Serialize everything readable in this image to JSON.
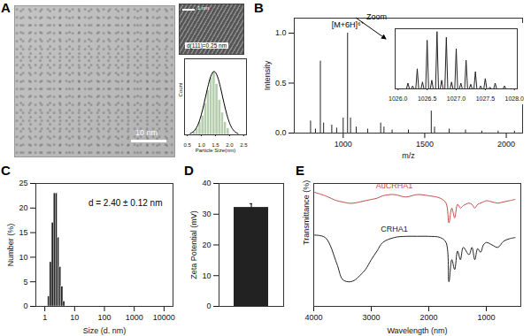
{
  "chart_data": [
    {
      "type": "image",
      "label": "A",
      "scale_bar": "10 nm"
    },
    {
      "type": "image",
      "scale_bar": "1 nm",
      "annotations": [
        "d(111)=0.25 nm"
      ]
    },
    {
      "type": "histogram",
      "bins": [
        0.7,
        0.8,
        0.9,
        1.0,
        1.1,
        1.2,
        1.3,
        1.4,
        1.5,
        1.6,
        1.7,
        1.8,
        1.9,
        2.0
      ],
      "values": [
        1,
        2,
        4,
        6,
        10,
        14,
        18,
        20,
        16,
        11,
        7,
        4,
        2
      ],
      "color": "#b7cdb0",
      "fit": {
        "x": [
          0.6,
          0.7,
          0.8,
          0.9,
          1.0,
          1.1,
          1.2,
          1.3,
          1.4,
          1.5,
          1.6,
          1.7,
          1.8,
          1.9,
          2.0,
          2.1,
          2.2,
          2.3
        ],
        "values": [
          0.4,
          0.9,
          1.9,
          3.7,
          6.5,
          10.1,
          14.1,
          17.6,
          19.7,
          19.7,
          17.6,
          14.1,
          10.1,
          6.5,
          3.7,
          1.9,
          0.9,
          0.4
        ]
      },
      "xlim": [
        0.4,
        2.6
      ],
      "xticks": [
        0.5,
        {
          "value": 1,
          "label": "1.0"
        },
        1.5,
        {
          "value": 2,
          "label": "2.0"
        },
        2.5
      ],
      "ylim": [
        0,
        24
      ],
      "tick_labels": "x",
      "x_label": "Particle Size(nm)",
      "y_label": "Count"
    },
    {
      "type": "spectrum",
      "label": "B",
      "x": [
        800,
        830,
        860,
        880,
        930,
        960,
        1000,
        1027,
        1045,
        1080,
        1150,
        1230,
        1250,
        1300,
        1400,
        1540,
        1560,
        1650,
        1750,
        1850,
        1950,
        2050
      ],
      "values": [
        0.12,
        0.04,
        0.72,
        0.1,
        0.08,
        0.05,
        0.15,
        1.0,
        0.15,
        0.06,
        0.04,
        0.1,
        0.06,
        0.03,
        0.03,
        0.22,
        0.06,
        0.04,
        0.03,
        0.02,
        0.02,
        0.02
      ],
      "color": "#222222",
      "xlim": [
        700,
        2100
      ],
      "xticks": [
        1000,
        1500,
        2000
      ],
      "ylim": [
        0,
        1.15
      ],
      "yticks": [
        {
          "value": 0,
          "label": "0.0"
        },
        {
          "value": 0.5,
          "label": "0.5"
        },
        {
          "value": 1,
          "label": "1.0"
        }
      ],
      "x_label": "m/z",
      "y_label": "Intensity",
      "annotations": [
        "[M+6H]⁶⁺",
        "Zoom"
      ],
      "inset": {
        "type": "spectrum",
        "x": [
          1026.17,
          1026.25,
          1026.33,
          1026.42,
          1026.5,
          1026.58,
          1026.67,
          1026.75,
          1026.83,
          1026.92,
          1027.0,
          1027.08,
          1027.17,
          1027.25,
          1027.33,
          1027.42,
          1027.5,
          1027.58,
          1027.67,
          1027.83
        ],
        "values": [
          0.1,
          0.05,
          0.35,
          0.12,
          0.85,
          0.15,
          1.0,
          0.15,
          0.9,
          0.12,
          0.7,
          0.1,
          0.5,
          0.08,
          0.3,
          0.05,
          0.18,
          0.03,
          0.1,
          0.05
        ],
        "xlim": [
          1025.95,
          1028.05
        ],
        "ylim": [
          0,
          1.05
        ],
        "tick_labels": "x",
        "xticks": [
          {
            "value": 1026,
            "label": "1026.0"
          },
          {
            "value": 1026.5,
            "label": "1026.5"
          },
          {
            "value": 1027,
            "label": "1027.0"
          },
          {
            "value": 1027.5,
            "label": "1027.5"
          },
          {
            "value": 1028,
            "label": "1028.0"
          }
        ]
      }
    },
    {
      "type": "histogram",
      "label": "C",
      "bins": [
        1.28,
        1.48,
        1.72,
        1.99,
        2.3,
        2.67,
        3.09,
        3.58,
        4.15,
        4.8
      ],
      "values": [
        2,
        9,
        17,
        23,
        23,
        14,
        8,
        4,
        1
      ],
      "color": "#222222",
      "log": "x",
      "xlim": [
        0.5,
        20000
      ],
      "xticks": [
        1,
        10,
        100,
        1000,
        10000
      ],
      "ylim": [
        0,
        25
      ],
      "yticks": [
        0,
        5,
        10,
        15,
        20,
        25
      ],
      "x_label": "Size (d. nm)",
      "y_label": "Number (%)",
      "annotations": [
        "d = 2.40 ± 0.12 nm"
      ]
    },
    {
      "type": "bar",
      "label": "D",
      "categories": [
        null
      ],
      "values": [
        32.2
      ],
      "errors": [
        1.2
      ],
      "color": "#222222",
      "ylim": [
        0,
        40
      ],
      "yticks": [
        0,
        10,
        20,
        30,
        40
      ],
      "y_label": "Zeta Potential (mV)"
    },
    {
      "type": "line",
      "label": "E",
      "x": [
        4000,
        3800,
        3600,
        3500,
        3400,
        3300,
        3200,
        3100,
        3000,
        2900,
        2800,
        2600,
        2400,
        2200,
        2000,
        1800,
        1700,
        1650,
        1600,
        1550,
        1500,
        1450,
        1400,
        1300,
        1250,
        1200,
        1150,
        1100,
        1050,
        1000,
        900,
        800,
        700,
        600,
        500
      ],
      "series": [
        {
          "name": "AuCRHA1",
          "color": "#c0504d",
          "values": [
            0.93,
            0.9,
            0.86,
            0.85,
            0.84,
            0.84,
            0.85,
            0.86,
            0.87,
            0.88,
            0.9,
            0.91,
            0.89,
            0.91,
            0.9,
            0.88,
            0.84,
            0.68,
            0.8,
            0.72,
            0.83,
            0.8,
            0.82,
            0.84,
            0.83,
            0.8,
            0.83,
            0.84,
            0.85,
            0.86,
            0.85,
            0.84,
            0.85,
            0.86,
            0.87
          ]
        },
        {
          "name": "CRHA1",
          "color": "#222222",
          "values": [
            0.58,
            0.56,
            0.35,
            0.22,
            0.2,
            0.21,
            0.25,
            0.3,
            0.38,
            0.45,
            0.52,
            0.56,
            0.57,
            0.57,
            0.57,
            0.56,
            0.52,
            0.2,
            0.38,
            0.3,
            0.45,
            0.38,
            0.48,
            0.42,
            0.48,
            0.38,
            0.47,
            0.44,
            0.5,
            0.52,
            0.5,
            0.48,
            0.53,
            0.55,
            0.56
          ]
        }
      ],
      "xlim": [
        4000,
        400
      ],
      "xticks": [
        4000,
        3000,
        2000,
        1000
      ],
      "ylim": [
        0,
        1
      ],
      "tick_labels": "x",
      "x_label": "Wavelength (nm)",
      "y_label": "Transmittance (%)"
    }
  ]
}
